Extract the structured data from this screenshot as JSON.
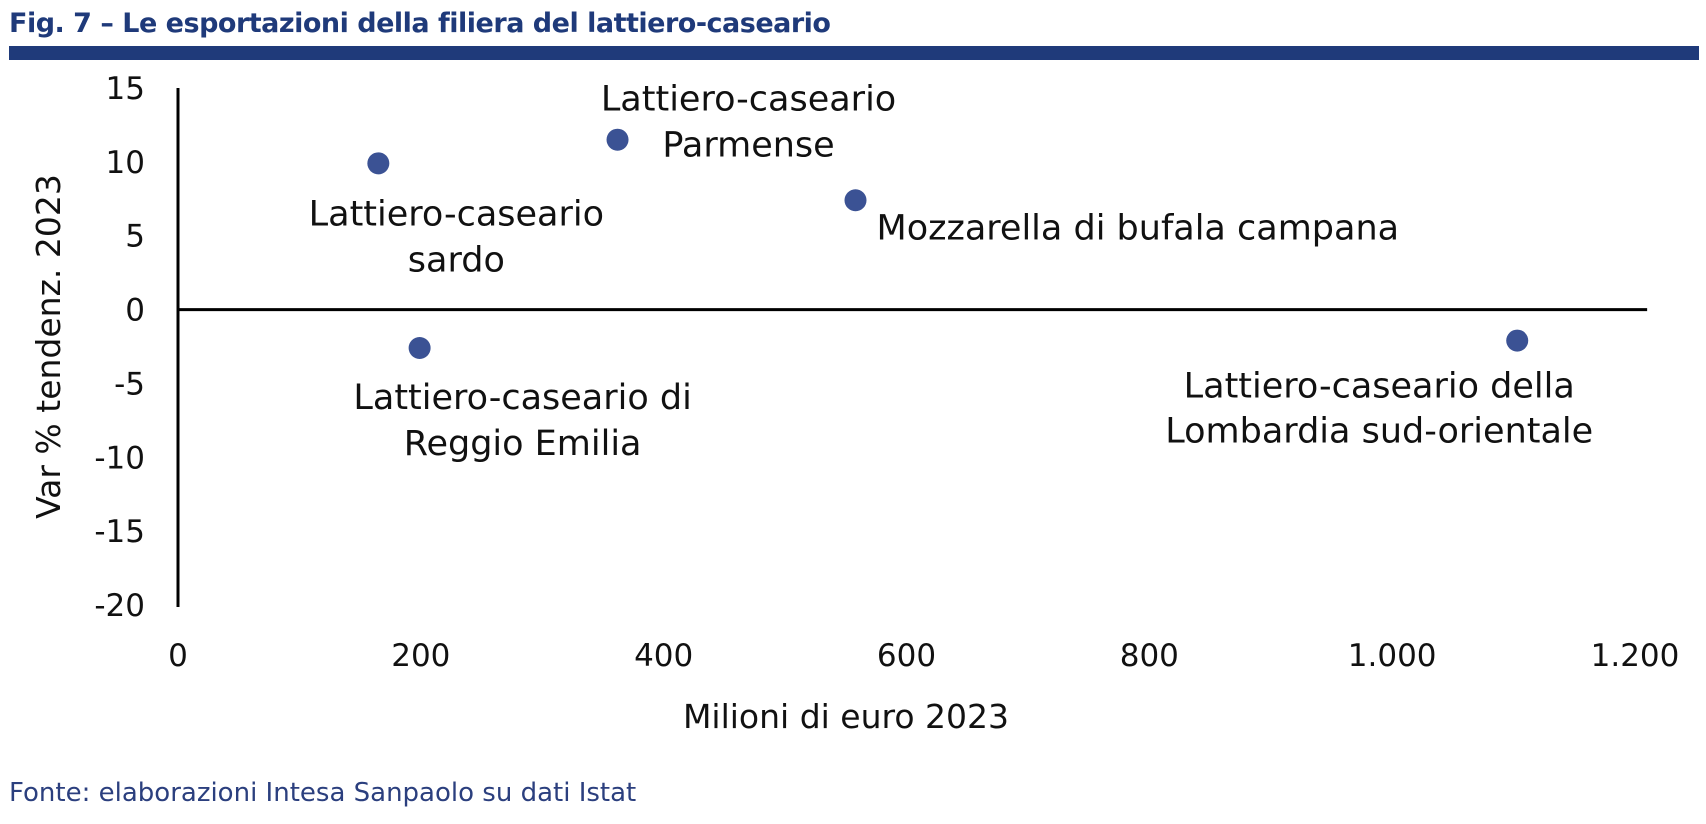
{
  "figure": {
    "title": "Fig. 7 – Le esportazioni della filiera del lattiero-caseario",
    "source": "Fonte: elaborazioni Intesa Sanpaolo su dati Istat"
  },
  "colors": {
    "title": "#1f3a7a",
    "point": "#3b5294",
    "axis": "#000000",
    "source": "#2b3f7e"
  },
  "chart_data": {
    "type": "scatter",
    "title": "Fig. 7 – Le esportazioni della filiera del lattiero-caseario",
    "xlabel": "Milioni di euro 2023",
    "ylabel": "Var % tendenz. 2023",
    "xlim": [
      0,
      1200
    ],
    "ylim": [
      -20,
      15
    ],
    "x_ticks": [
      0,
      200,
      400,
      600,
      800,
      1000,
      1200
    ],
    "x_tick_labels": [
      "0",
      "200",
      "400",
      "600",
      "800",
      "1.000",
      "1.200"
    ],
    "y_ticks": [
      15,
      10,
      5,
      0,
      -5,
      -10,
      -15,
      -20
    ],
    "y_tick_labels": [
      "15",
      "10",
      "5",
      "0",
      "-5",
      "-10",
      "-15",
      "-20"
    ],
    "grid": false,
    "points": [
      {
        "label_lines": [
          "Lattiero-caseario",
          "sardo"
        ],
        "x": 165,
        "y": 9.9
      },
      {
        "label_lines": [
          "Lattiero-caseario",
          "Parmense"
        ],
        "x": 362,
        "y": 11.5
      },
      {
        "label_lines": [
          "Mozzarella di bufala campana"
        ],
        "x": 558,
        "y": 7.4
      },
      {
        "label_lines": [
          "Lattiero-caseario di",
          "Reggio Emilia"
        ],
        "x": 199,
        "y": -2.6
      },
      {
        "label_lines": [
          "Lattiero-caseario della",
          "Lombardia sud-orientale"
        ],
        "x": 1103,
        "y": -2.1
      }
    ]
  }
}
